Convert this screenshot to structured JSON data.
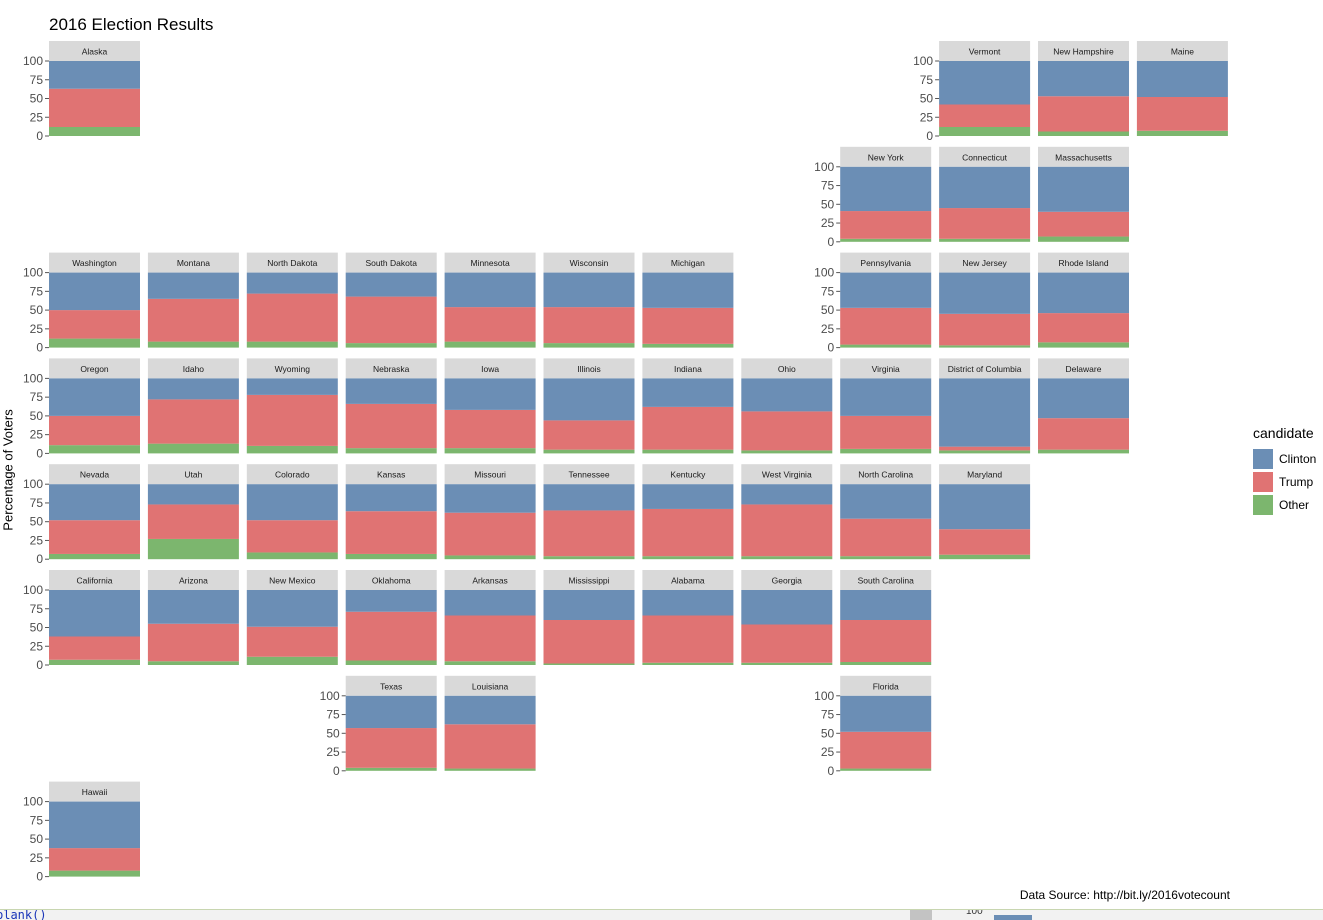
{
  "chart_data": {
    "type": "bar",
    "title": "2016 Election Results",
    "ylabel": "Percentage of Voters",
    "xlabel": "",
    "ylim": [
      0,
      100
    ],
    "y_ticks": [
      "0",
      "25",
      "50",
      "75",
      "100"
    ],
    "stacked": true,
    "layout": "geofacet grid of US states",
    "legend": {
      "title": "candidate",
      "position": "right",
      "entries": [
        {
          "name": "Clinton",
          "color": "#6b8eb5"
        },
        {
          "name": "Trump",
          "color": "#e07373"
        },
        {
          "name": "Other",
          "color": "#7cb66e"
        }
      ]
    },
    "source": "Data Source: http://bit.ly/2016votecount",
    "panels": [
      {
        "state": "Alaska",
        "row": 0,
        "col": 0,
        "other": 12,
        "trump": 51,
        "clinton": 37
      },
      {
        "state": "Vermont",
        "row": 0,
        "col": 9,
        "other": 12,
        "trump": 30,
        "clinton": 58
      },
      {
        "state": "New Hampshire",
        "row": 0,
        "col": 10,
        "other": 6,
        "trump": 47,
        "clinton": 47
      },
      {
        "state": "Maine",
        "row": 0,
        "col": 11,
        "other": 7,
        "trump": 45,
        "clinton": 48
      },
      {
        "state": "New York",
        "row": 1,
        "col": 8,
        "other": 4,
        "trump": 37,
        "clinton": 59
      },
      {
        "state": "Connecticut",
        "row": 1,
        "col": 9,
        "other": 4,
        "trump": 41,
        "clinton": 55
      },
      {
        "state": "Massachusetts",
        "row": 1,
        "col": 10,
        "other": 7,
        "trump": 33,
        "clinton": 60
      },
      {
        "state": "Washington",
        "row": 2,
        "col": 0,
        "other": 12,
        "trump": 38,
        "clinton": 50
      },
      {
        "state": "Montana",
        "row": 2,
        "col": 1,
        "other": 8,
        "trump": 57,
        "clinton": 35
      },
      {
        "state": "North Dakota",
        "row": 2,
        "col": 2,
        "other": 8,
        "trump": 64,
        "clinton": 28
      },
      {
        "state": "South Dakota",
        "row": 2,
        "col": 3,
        "other": 6,
        "trump": 62,
        "clinton": 32
      },
      {
        "state": "Minnesota",
        "row": 2,
        "col": 4,
        "other": 8,
        "trump": 46,
        "clinton": 46
      },
      {
        "state": "Wisconsin",
        "row": 2,
        "col": 5,
        "other": 6,
        "trump": 48,
        "clinton": 46
      },
      {
        "state": "Michigan",
        "row": 2,
        "col": 6,
        "other": 5,
        "trump": 48,
        "clinton": 47
      },
      {
        "state": "Pennsylvania",
        "row": 2,
        "col": 8,
        "other": 4,
        "trump": 49,
        "clinton": 47
      },
      {
        "state": "New Jersey",
        "row": 2,
        "col": 9,
        "other": 3,
        "trump": 42,
        "clinton": 55
      },
      {
        "state": "Rhode Island",
        "row": 2,
        "col": 10,
        "other": 7,
        "trump": 39,
        "clinton": 54
      },
      {
        "state": "Oregon",
        "row": 3,
        "col": 0,
        "other": 11,
        "trump": 39,
        "clinton": 50
      },
      {
        "state": "Idaho",
        "row": 3,
        "col": 1,
        "other": 13,
        "trump": 59,
        "clinton": 28
      },
      {
        "state": "Wyoming",
        "row": 3,
        "col": 2,
        "other": 10,
        "trump": 68,
        "clinton": 22
      },
      {
        "state": "Nebraska",
        "row": 3,
        "col": 3,
        "other": 7,
        "trump": 59,
        "clinton": 34
      },
      {
        "state": "Iowa",
        "row": 3,
        "col": 4,
        "other": 7,
        "trump": 51,
        "clinton": 42
      },
      {
        "state": "Illinois",
        "row": 3,
        "col": 5,
        "other": 5,
        "trump": 39,
        "clinton": 56
      },
      {
        "state": "Indiana",
        "row": 3,
        "col": 6,
        "other": 5,
        "trump": 57,
        "clinton": 38
      },
      {
        "state": "Ohio",
        "row": 3,
        "col": 7,
        "other": 4,
        "trump": 52,
        "clinton": 44
      },
      {
        "state": "Virginia",
        "row": 3,
        "col": 8,
        "other": 6,
        "trump": 44,
        "clinton": 50
      },
      {
        "state": "District of Columbia",
        "row": 3,
        "col": 9,
        "other": 4,
        "trump": 5,
        "clinton": 91
      },
      {
        "state": "Delaware",
        "row": 3,
        "col": 10,
        "other": 5,
        "trump": 42,
        "clinton": 53
      },
      {
        "state": "Nevada",
        "row": 4,
        "col": 0,
        "other": 7,
        "trump": 45,
        "clinton": 48
      },
      {
        "state": "Utah",
        "row": 4,
        "col": 1,
        "other": 27,
        "trump": 46,
        "clinton": 27
      },
      {
        "state": "Colorado",
        "row": 4,
        "col": 2,
        "other": 9,
        "trump": 43,
        "clinton": 48
      },
      {
        "state": "Kansas",
        "row": 4,
        "col": 3,
        "other": 7,
        "trump": 57,
        "clinton": 36
      },
      {
        "state": "Missouri",
        "row": 4,
        "col": 4,
        "other": 5,
        "trump": 57,
        "clinton": 38
      },
      {
        "state": "Tennessee",
        "row": 4,
        "col": 5,
        "other": 4,
        "trump": 61,
        "clinton": 35
      },
      {
        "state": "Kentucky",
        "row": 4,
        "col": 6,
        "other": 4,
        "trump": 63,
        "clinton": 33
      },
      {
        "state": "West Virginia",
        "row": 4,
        "col": 7,
        "other": 4,
        "trump": 69,
        "clinton": 27
      },
      {
        "state": "North Carolina",
        "row": 4,
        "col": 8,
        "other": 4,
        "trump": 50,
        "clinton": 46
      },
      {
        "state": "Maryland",
        "row": 4,
        "col": 9,
        "other": 6,
        "trump": 34,
        "clinton": 60
      },
      {
        "state": "California",
        "row": 5,
        "col": 0,
        "other": 7,
        "trump": 31,
        "clinton": 62
      },
      {
        "state": "Arizona",
        "row": 5,
        "col": 1,
        "other": 5,
        "trump": 50,
        "clinton": 45
      },
      {
        "state": "New Mexico",
        "row": 5,
        "col": 2,
        "other": 11,
        "trump": 40,
        "clinton": 49
      },
      {
        "state": "Oklahoma",
        "row": 5,
        "col": 3,
        "other": 6,
        "trump": 65,
        "clinton": 29
      },
      {
        "state": "Arkansas",
        "row": 5,
        "col": 4,
        "other": 5,
        "trump": 61,
        "clinton": 34
      },
      {
        "state": "Mississippi",
        "row": 5,
        "col": 5,
        "other": 2,
        "trump": 58,
        "clinton": 40
      },
      {
        "state": "Alabama",
        "row": 5,
        "col": 6,
        "other": 3,
        "trump": 63,
        "clinton": 34
      },
      {
        "state": "Georgia",
        "row": 5,
        "col": 7,
        "other": 3,
        "trump": 51,
        "clinton": 46
      },
      {
        "state": "South Carolina",
        "row": 5,
        "col": 8,
        "other": 4,
        "trump": 56,
        "clinton": 40
      },
      {
        "state": "Texas",
        "row": 6,
        "col": 3,
        "other": 4,
        "trump": 53,
        "clinton": 43
      },
      {
        "state": "Louisiana",
        "row": 6,
        "col": 4,
        "other": 3,
        "trump": 59,
        "clinton": 38
      },
      {
        "state": "Florida",
        "row": 6,
        "col": 8,
        "other": 3,
        "trump": 49,
        "clinton": 48
      },
      {
        "state": "Hawaii",
        "row": 7,
        "col": 0,
        "other": 8,
        "trump": 30,
        "clinton": 62
      }
    ]
  },
  "console": {
    "text": "blank()",
    "tick": "100"
  }
}
